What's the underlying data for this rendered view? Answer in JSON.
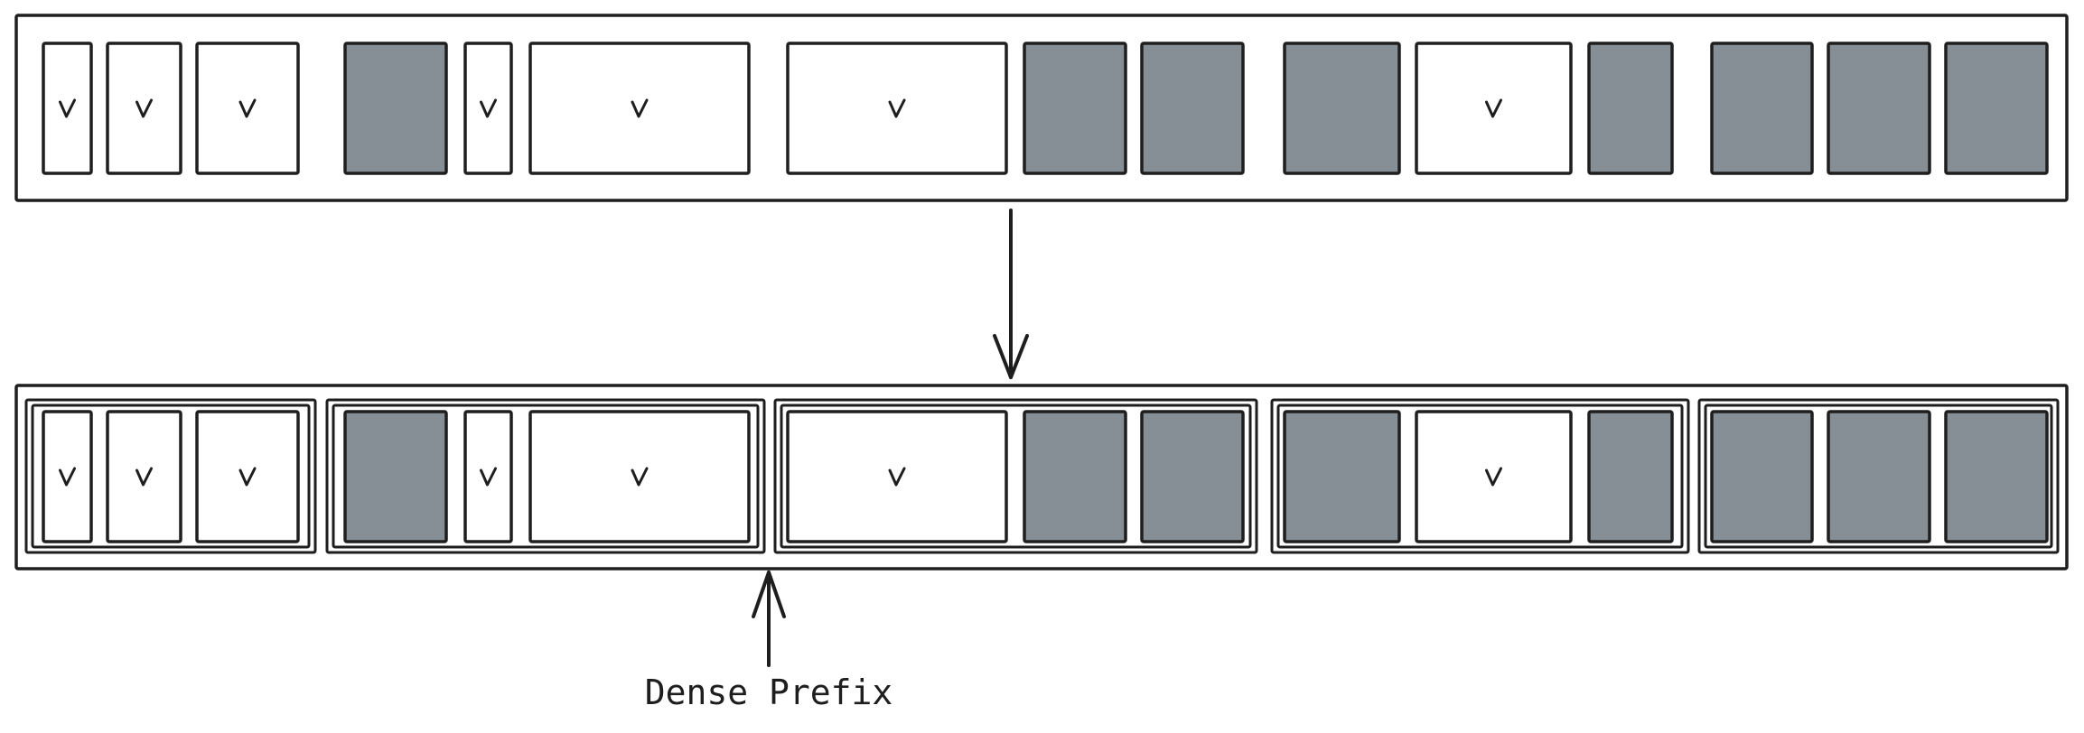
{
  "caption": "Dense Prefix",
  "cell_mark": "v",
  "colors": {
    "stroke": "#1e1e1e",
    "value_cell_fill": "#ffffff",
    "empty_cell_fill": "#868e96",
    "background": "#ffffff"
  },
  "sequence": {
    "cells": [
      {
        "kind": "value",
        "size": "narrow"
      },
      {
        "kind": "value",
        "size": "small"
      },
      {
        "kind": "value",
        "size": "medium"
      },
      {
        "kind": "empty",
        "size": "medium"
      },
      {
        "kind": "value",
        "size": "narrow"
      },
      {
        "kind": "value",
        "size": "large"
      },
      {
        "kind": "value",
        "size": "large"
      },
      {
        "kind": "empty",
        "size": "medium"
      },
      {
        "kind": "empty",
        "size": "medium"
      },
      {
        "kind": "empty",
        "size": "medium"
      },
      {
        "kind": "value",
        "size": "medium"
      },
      {
        "kind": "empty",
        "size": "small"
      },
      {
        "kind": "empty",
        "size": "medium"
      },
      {
        "kind": "empty",
        "size": "medium"
      },
      {
        "kind": "empty",
        "size": "medium"
      }
    ]
  },
  "grouped": {
    "groups": [
      [
        0,
        1,
        2
      ],
      [
        3,
        4,
        5
      ],
      [
        6,
        7,
        8
      ],
      [
        9,
        10,
        11
      ],
      [
        12,
        13,
        14
      ]
    ],
    "dense_prefix_after_group": 1
  }
}
